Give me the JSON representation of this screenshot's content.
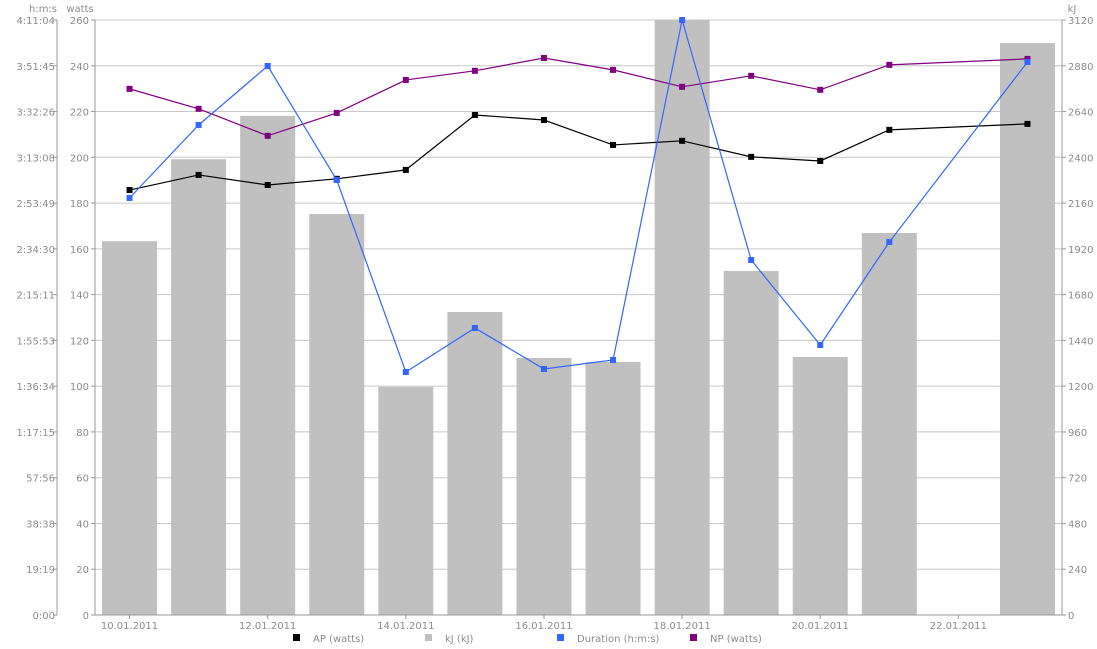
{
  "chart_data": {
    "type": "bar+line",
    "categories": [
      "10.01.2011",
      "11.01.2011",
      "12.01.2011",
      "13.01.2011",
      "14.01.2011",
      "15.01.2011",
      "16.01.2011",
      "17.01.2011",
      "18.01.2011",
      "19.01.2011",
      "20.01.2011",
      "21.01.2011",
      "22.01.2011",
      "23.01.2011"
    ],
    "x_tick_labels": [
      "10.01.2011",
      "12.01.2011",
      "14.01.2011",
      "16.01.2011",
      "18.01.2011",
      "20.01.2011",
      "22.01.2011"
    ],
    "axes": {
      "left_outer": {
        "label": "h:m:s",
        "ticks": [
          "0:00",
          "19:19",
          "38:38",
          "57:56",
          "1:17:15",
          "1:36:34",
          "1:55:53",
          "2:15:11",
          "2:34:30",
          "2:53:49",
          "3:13:08",
          "3:32:26",
          "3:51:45",
          "4:11:04"
        ],
        "range_seconds": [
          0,
          15064
        ]
      },
      "left": {
        "label": "watts",
        "ticks": [
          "0",
          "20",
          "40",
          "60",
          "80",
          "100",
          "120",
          "140",
          "160",
          "180",
          "200",
          "220",
          "240",
          "260"
        ],
        "range": [
          0,
          260
        ]
      },
      "right": {
        "label": "kJ",
        "ticks": [
          "0",
          "240",
          "480",
          "720",
          "960",
          "1200",
          "1440",
          "1680",
          "1920",
          "2160",
          "2400",
          "2640",
          "2880",
          "3120"
        ],
        "range": [
          0,
          3120
        ]
      }
    },
    "series": [
      {
        "name": "kJ (kJ)",
        "kind": "bar",
        "axis": "right",
        "color": "#c0c0c0",
        "values": [
          1960,
          2390,
          2617,
          2103,
          1196,
          1589,
          1348,
          1327,
          3120,
          1804,
          1353,
          2003,
          null,
          2999
        ]
      },
      {
        "name": "AP (watts)",
        "kind": "line",
        "axis": "left",
        "color": "#000000",
        "values": [
          185.7,
          192.3,
          187.9,
          190.6,
          194.5,
          218.5,
          216.3,
          205.4,
          207.2,
          200.2,
          198.4,
          212.0,
          null,
          214.6
        ]
      },
      {
        "name": "Duration (h:m:s)",
        "kind": "line",
        "axis": "left_outer",
        "color": "#3366ff",
        "values_seconds": [
          10558,
          12406,
          13900,
          11013,
          6152,
          7266,
          6228,
          6456,
          15064,
          8988,
          6836,
          9443,
          null,
          14001
        ]
      },
      {
        "name": "NP (watts)",
        "kind": "line",
        "axis": "left",
        "color": "#800080",
        "values": [
          229.9,
          221.2,
          209.4,
          219.4,
          233.8,
          237.8,
          243.4,
          238.2,
          230.8,
          235.6,
          229.5,
          240.4,
          null,
          243.0
        ]
      }
    ],
    "legend_order": [
      "AP (watts)",
      "kJ (kJ)",
      "Duration (h:m:s)",
      "NP (watts)"
    ],
    "legend_colors": [
      "#000000",
      "#c0c0c0",
      "#3366ff",
      "#800080"
    ],
    "legend_placement": "bottom",
    "grid": true
  }
}
